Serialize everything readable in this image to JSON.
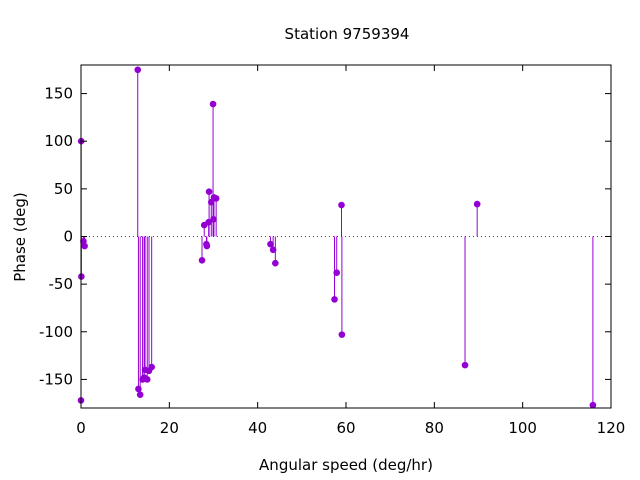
{
  "chart_data": {
    "type": "scatter",
    "style": "impulses-with-points",
    "title": "Station 9759394",
    "xlabel": "Angular speed (deg/hr)",
    "ylabel": "Phase (deg)",
    "xlim": [
      0,
      120
    ],
    "ylim": [
      -180,
      180
    ],
    "xticks": [
      0,
      20,
      40,
      60,
      80,
      100,
      120
    ],
    "yticks": [
      -150,
      -100,
      -50,
      0,
      50,
      100,
      150
    ],
    "grid": false,
    "zero_line": true,
    "series": [
      {
        "color": "#9400D3",
        "points": [
          {
            "x": 0.0,
            "y": -172
          },
          {
            "x": 0.04,
            "y": 100
          },
          {
            "x": 0.08,
            "y": -42
          },
          {
            "x": 0.55,
            "y": -5
          },
          {
            "x": 0.82,
            "y": -10
          },
          {
            "x": 12.85,
            "y": 175
          },
          {
            "x": 13.0,
            "y": -160
          },
          {
            "x": 13.4,
            "y": -166
          },
          {
            "x": 13.94,
            "y": -150
          },
          {
            "x": 14.3,
            "y": -148
          },
          {
            "x": 14.5,
            "y": -140
          },
          {
            "x": 15.0,
            "y": -150
          },
          {
            "x": 15.4,
            "y": -141
          },
          {
            "x": 16.0,
            "y": -137
          },
          {
            "x": 27.4,
            "y": -25
          },
          {
            "x": 27.9,
            "y": 12
          },
          {
            "x": 28.4,
            "y": -8
          },
          {
            "x": 28.5,
            "y": -10
          },
          {
            "x": 28.9,
            "y": 15
          },
          {
            "x": 29.0,
            "y": 47
          },
          {
            "x": 29.5,
            "y": 36
          },
          {
            "x": 29.9,
            "y": 139
          },
          {
            "x": 30.0,
            "y": 18
          },
          {
            "x": 30.1,
            "y": 41
          },
          {
            "x": 30.6,
            "y": 40
          },
          {
            "x": 42.9,
            "y": -8
          },
          {
            "x": 43.5,
            "y": -14
          },
          {
            "x": 44.0,
            "y": -28
          },
          {
            "x": 57.4,
            "y": -66
          },
          {
            "x": 57.9,
            "y": -38
          },
          {
            "x": 58.98,
            "y": 33
          },
          {
            "x": 59.07,
            "y": -103
          },
          {
            "x": 86.95,
            "y": -135
          },
          {
            "x": 89.7,
            "y": 34
          },
          {
            "x": 115.9,
            "y": -177
          }
        ]
      }
    ]
  }
}
